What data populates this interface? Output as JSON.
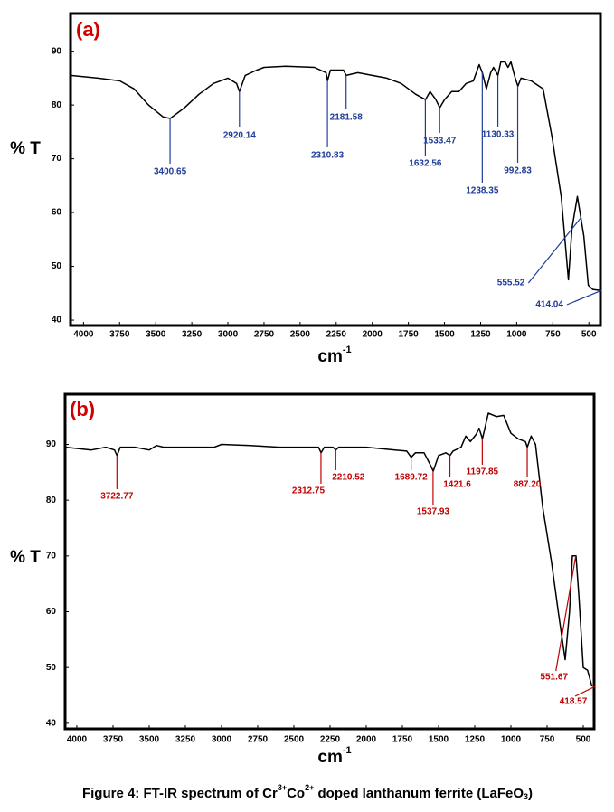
{
  "chart_data": [
    {
      "type": "line",
      "panel_label": "(a)",
      "ylabel": "% T",
      "xlabel": [
        "cm",
        "-1"
      ],
      "color": "#000000",
      "annotation_color": "#1f3c99",
      "xlim": [
        4090,
        420
      ],
      "ylim": [
        39,
        97
      ],
      "xticks": [
        4000,
        3750,
        3500,
        3250,
        3000,
        2750,
        2500,
        2250,
        2000,
        1750,
        1500,
        1250,
        1000,
        750,
        500
      ],
      "yticks": [
        40,
        50,
        60,
        70,
        80,
        90
      ],
      "x": [
        4090,
        3900,
        3750,
        3650,
        3550,
        3450,
        3400,
        3300,
        3200,
        3100,
        3000,
        2940,
        2920,
        2880,
        2800,
        2750,
        2600,
        2400,
        2320,
        2310,
        2290,
        2200,
        2181,
        2100,
        2000,
        1900,
        1800,
        1700,
        1632,
        1600,
        1560,
        1533,
        1500,
        1450,
        1400,
        1350,
        1300,
        1260,
        1238,
        1210,
        1180,
        1160,
        1130,
        1110,
        1080,
        1060,
        1040,
        1010,
        992,
        970,
        900,
        817,
        755,
        692,
        642,
        617,
        580,
        535,
        504,
        473,
        420
      ],
      "values": [
        85.5,
        85,
        84.5,
        83,
        80,
        77.8,
        77.5,
        79.5,
        82,
        84,
        85,
        84,
        82.5,
        85.5,
        86.5,
        87,
        87.2,
        87,
        86,
        84.5,
        86.5,
        86.5,
        85.5,
        86,
        85.5,
        85,
        84,
        82,
        81,
        82.5,
        81,
        79.5,
        81,
        82.5,
        82.5,
        84,
        84.5,
        87.5,
        86,
        83,
        86,
        87,
        85.5,
        88,
        88,
        87,
        88,
        85,
        83.5,
        85,
        84.5,
        83,
        74,
        63,
        47.5,
        57,
        63,
        55.7,
        46.5,
        45.7,
        45.5
      ],
      "peaks": [
        {
          "label": "3400.65",
          "x": 3400.65
        },
        {
          "label": "2920.14",
          "x": 2920.14
        },
        {
          "label": "2310.83",
          "x": 2310.83
        },
        {
          "label": "2181.58",
          "x": 2181.58
        },
        {
          "label": "1632.56",
          "x": 1632.56
        },
        {
          "label": "1533.47",
          "x": 1533.47
        },
        {
          "label": "1238.35",
          "x": 1238.35
        },
        {
          "label": "1130.33",
          "x": 1130.33
        },
        {
          "label": "992.83",
          "x": 992.83
        },
        {
          "label": "555.52",
          "x": 555.52
        },
        {
          "label": "414.04",
          "x": 414.04
        }
      ]
    },
    {
      "type": "line",
      "panel_label": "(b)",
      "ylabel": "% T",
      "xlabel": [
        "cm",
        "-1"
      ],
      "color": "#000000",
      "annotation_color": "#c00000",
      "xlim": [
        4081,
        425
      ],
      "ylim": [
        39,
        99
      ],
      "xticks": [
        4000,
        3750,
        3500,
        3250,
        3000,
        2750,
        2500,
        2250,
        2000,
        1750,
        1500,
        1250,
        1000,
        750,
        500
      ],
      "yticks": [
        40,
        50,
        60,
        70,
        80,
        90
      ],
      "x": [
        4080,
        3900,
        3800,
        3740,
        3722,
        3700,
        3600,
        3500,
        3450,
        3400,
        3200,
        3050,
        3000,
        2800,
        2600,
        2400,
        2330,
        2312,
        2290,
        2230,
        2210,
        2190,
        2000,
        1800,
        1720,
        1689,
        1660,
        1600,
        1560,
        1537,
        1500,
        1450,
        1421,
        1400,
        1344,
        1312,
        1280,
        1240,
        1220,
        1197,
        1156,
        1100,
        1050,
        1000,
        950,
        900,
        887,
        860,
        830,
        780,
        720,
        670,
        625,
        595,
        575,
        550,
        530,
        500,
        470,
        440
      ],
      "values": [
        89.5,
        89,
        89.5,
        89,
        88,
        89.5,
        89.5,
        89,
        89.8,
        89.5,
        89.5,
        89.5,
        90,
        89.8,
        89.5,
        89.5,
        89.5,
        88.5,
        89.5,
        89.5,
        89,
        89.5,
        89.5,
        89,
        88.8,
        87.7,
        88.5,
        88.5,
        86.5,
        85.2,
        88,
        88.5,
        88,
        88.8,
        89.5,
        91.5,
        90.5,
        91.8,
        92.9,
        91,
        95.6,
        95,
        95.2,
        92,
        91,
        90.5,
        89.5,
        91.5,
        90,
        78.7,
        69,
        59.5,
        51.4,
        60,
        70,
        70,
        62.7,
        50,
        49.5,
        46.6
      ],
      "peaks": [
        {
          "label": "3722.77",
          "x": 3722.77
        },
        {
          "label": "2312.75",
          "x": 2312.75
        },
        {
          "label": "2210.52",
          "x": 2210.52
        },
        {
          "label": "1689.72",
          "x": 1689.72
        },
        {
          "label": "1537.93",
          "x": 1537.93
        },
        {
          "label": "1421.6",
          "x": 1421.6
        },
        {
          "label": "1197.85",
          "x": 1197.85
        },
        {
          "label": "887.20",
          "x": 887.2
        },
        {
          "label": "551.67",
          "x": 551.67
        },
        {
          "label": "418.57",
          "x": 418.57
        }
      ]
    }
  ],
  "caption": [
    "Figure 4: FT-IR spectrum of Cr",
    "3+",
    "Co",
    "2+",
    " doped lanthanum ferrite (LaFeO",
    "3",
    ")"
  ]
}
